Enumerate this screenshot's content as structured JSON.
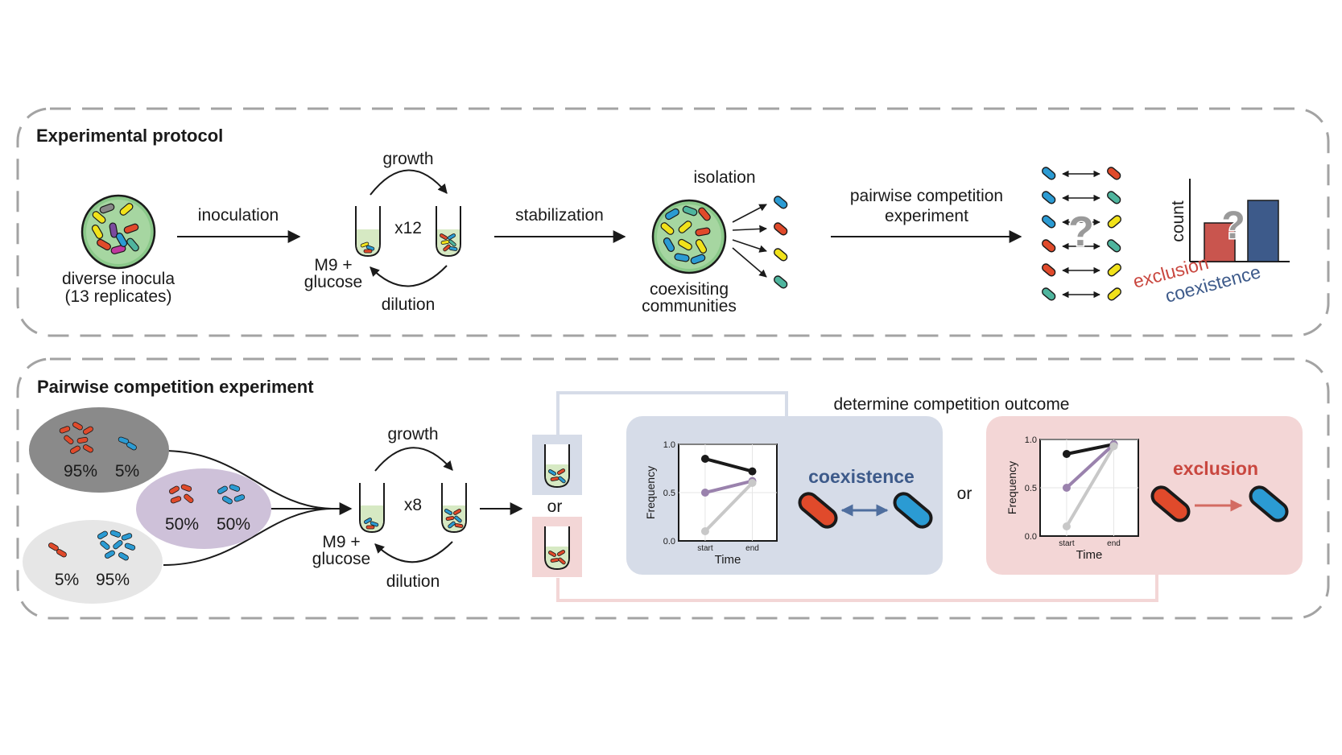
{
  "panel_top": {
    "title": "Experimental protocol",
    "inocula_label_1": "diverse inocula",
    "inocula_label_2": "(13 replicates)",
    "inoculation": "inoculation",
    "growth": "growth",
    "dilution": "dilution",
    "cycles": "x12",
    "medium_1": "M9 +",
    "medium_2": "glucose",
    "stabilization": "stabilization",
    "isolation": "isolation",
    "communities_1": "coexisiting",
    "communities_2": "communities",
    "pairwise_1": "pairwise competition",
    "pairwise_2": "experiment",
    "question": "?",
    "count_label": "count",
    "exclusion": "exclusion",
    "coexistence": "coexistence"
  },
  "panel_bottom": {
    "title": "Pairwise competition experiment",
    "mix_1_a": "95%",
    "mix_1_b": "5%",
    "mix_2_a": "50%",
    "mix_2_b": "50%",
    "mix_3_a": "5%",
    "mix_3_b": "95%",
    "growth": "growth",
    "dilution": "dilution",
    "cycles": "x8",
    "medium_1": "M9 +",
    "medium_2": "glucose",
    "or": "or",
    "determine": "determine competition outcome",
    "coexistence": "coexistence",
    "exclusion": "exclusion"
  },
  "colors": {
    "red": "#e04a2b",
    "blue": "#2b9bd3",
    "yellow": "#f1e21a",
    "teal": "#4fb59e",
    "coexist_bg": "#d6dce8",
    "exclusion_bg": "#f3d6d6",
    "coexist_text": "#3d5a8a",
    "exclusion_text": "#c9473f",
    "bar_red": "#c9554e",
    "bar_blue": "#3d5a8a"
  },
  "chart_data": [
    {
      "type": "line",
      "name": "coexistence",
      "xlabel": "Time",
      "ylabel": "Frequency",
      "x": [
        "start",
        "end"
      ],
      "ylim": [
        0.0,
        1.0
      ],
      "yticks": [
        "0.0",
        "0.5",
        "1.0"
      ],
      "series": [
        {
          "color": "#1a1a1a",
          "values": [
            0.85,
            0.72
          ]
        },
        {
          "color": "#9a82ad",
          "values": [
            0.5,
            0.62
          ]
        },
        {
          "color": "#c8c8c8",
          "values": [
            0.1,
            0.6
          ]
        }
      ]
    },
    {
      "type": "line",
      "name": "exclusion",
      "xlabel": "Time",
      "ylabel": "Frequency",
      "x": [
        "start",
        "end"
      ],
      "ylim": [
        0.0,
        1.0
      ],
      "yticks": [
        "0.0",
        "0.5",
        "1.0"
      ],
      "series": [
        {
          "color": "#1a1a1a",
          "values": [
            0.85,
            0.95
          ]
        },
        {
          "color": "#9a82ad",
          "values": [
            0.5,
            0.95
          ]
        },
        {
          "color": "#c8c8c8",
          "values": [
            0.1,
            0.93
          ]
        }
      ]
    },
    {
      "type": "bar",
      "ylabel": "count",
      "categories": [
        "exclusion",
        "coexistence"
      ],
      "values": [
        0.6,
        0.95
      ]
    }
  ]
}
